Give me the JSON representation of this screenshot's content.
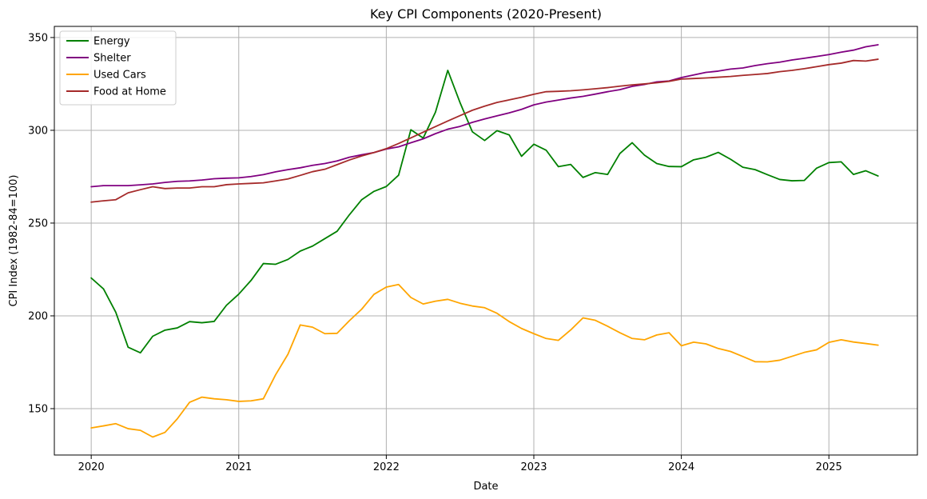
{
  "chart_data": {
    "type": "line",
    "title": "Key CPI Components (2020-Present)",
    "xlabel": "Date",
    "ylabel": "CPI Index (1982-84=100)",
    "xlim": [
      2019.75,
      2025.6
    ],
    "ylim": [
      125,
      356
    ],
    "grid": true,
    "legend_position": "top-left",
    "x_ticks": [
      {
        "value": 2020,
        "label": "2020"
      },
      {
        "value": 2021,
        "label": "2021"
      },
      {
        "value": 2022,
        "label": "2022"
      },
      {
        "value": 2023,
        "label": "2023"
      },
      {
        "value": 2024,
        "label": "2024"
      },
      {
        "value": 2025,
        "label": "2025"
      }
    ],
    "y_ticks": [
      {
        "value": 150,
        "label": "150"
      },
      {
        "value": 200,
        "label": "200"
      },
      {
        "value": 250,
        "label": "250"
      },
      {
        "value": 300,
        "label": "300"
      },
      {
        "value": 350,
        "label": "350"
      }
    ],
    "x_start": 2020,
    "x_step_months": 1,
    "series": [
      {
        "name": "Energy",
        "color": "#008000",
        "values": [
          220.4,
          214.5,
          201.9,
          183.1,
          180.1,
          189.0,
          192.3,
          193.5,
          196.9,
          196.3,
          197.0,
          205.7,
          211.7,
          219.1,
          228.2,
          227.8,
          230.4,
          234.9,
          237.6,
          241.6,
          245.6,
          254.5,
          262.6,
          267.1,
          269.7,
          275.8,
          300.3,
          295.8,
          309.8,
          332.3,
          314.9,
          299.2,
          294.5,
          299.8,
          297.5,
          286.0,
          292.5,
          289.3,
          280.4,
          281.6,
          274.6,
          277.2,
          276.2,
          287.5,
          293.3,
          286.6,
          282.1,
          280.5,
          280.4,
          284.1,
          285.5,
          288.1,
          284.4,
          280.1,
          278.8,
          276.1,
          273.5,
          272.8,
          273.0,
          279.6,
          282.6,
          283.0,
          276.2,
          278.2,
          275.4
        ]
      },
      {
        "name": "Shelter",
        "color": "#800080",
        "values": [
          269.6,
          270.2,
          270.2,
          270.2,
          270.6,
          271.1,
          271.9,
          272.5,
          272.7,
          273.2,
          273.9,
          274.2,
          274.4,
          275.1,
          276.1,
          277.6,
          278.8,
          279.8,
          281.1,
          282.1,
          283.5,
          285.5,
          286.8,
          288.0,
          289.9,
          291.1,
          293.3,
          295.4,
          298.2,
          300.6,
          302.1,
          304.3,
          306.1,
          307.8,
          309.4,
          311.3,
          313.7,
          315.2,
          316.3,
          317.4,
          318.3,
          319.5,
          320.8,
          321.9,
          323.7,
          324.7,
          326.1,
          326.6,
          328.4,
          329.8,
          331.2,
          331.9,
          333.0,
          333.6,
          334.9,
          335.9,
          336.7,
          337.9,
          338.8,
          339.8,
          340.8,
          342.1,
          343.2,
          345.0,
          346.1
        ]
      },
      {
        "name": "Used Cars",
        "color": "#ffa500",
        "values": [
          139.6,
          140.7,
          141.9,
          139.2,
          138.3,
          134.7,
          137.2,
          144.5,
          153.4,
          156.2,
          155.3,
          154.8,
          153.9,
          154.2,
          155.3,
          168.3,
          179.3,
          195.1,
          193.9,
          190.4,
          190.6,
          197.4,
          203.6,
          211.6,
          215.5,
          216.9,
          209.9,
          206.4,
          207.9,
          208.9,
          206.8,
          205.3,
          204.4,
          201.4,
          196.9,
          193.2,
          190.4,
          187.8,
          186.8,
          192.4,
          198.9,
          197.6,
          194.4,
          190.9,
          187.8,
          187.1,
          189.7,
          190.9,
          183.9,
          185.8,
          184.9,
          182.4,
          180.8,
          178.1,
          175.3,
          175.2,
          176.1,
          178.2,
          180.3,
          181.7,
          185.7,
          187.1,
          185.9,
          185.1,
          184.2
        ]
      },
      {
        "name": "Food at Home",
        "color": "#a52a2a",
        "values": [
          261.3,
          262.0,
          262.6,
          266.3,
          268.0,
          269.6,
          268.6,
          268.9,
          268.9,
          269.6,
          269.6,
          270.7,
          271.1,
          271.4,
          271.7,
          272.7,
          273.8,
          275.7,
          277.7,
          279.0,
          281.5,
          284.0,
          286.2,
          288.0,
          290.1,
          292.9,
          295.9,
          299.0,
          302.0,
          305.0,
          307.9,
          310.8,
          313.0,
          315.0,
          316.4,
          317.8,
          319.4,
          320.8,
          321.0,
          321.3,
          321.8,
          322.4,
          323.0,
          323.8,
          324.5,
          325.0,
          325.6,
          326.4,
          327.6,
          327.9,
          328.2,
          328.6,
          329.0,
          329.6,
          330.1,
          330.6,
          331.6,
          332.3,
          333.2,
          334.3,
          335.4,
          336.2,
          337.6,
          337.3,
          338.3
        ]
      }
    ]
  }
}
